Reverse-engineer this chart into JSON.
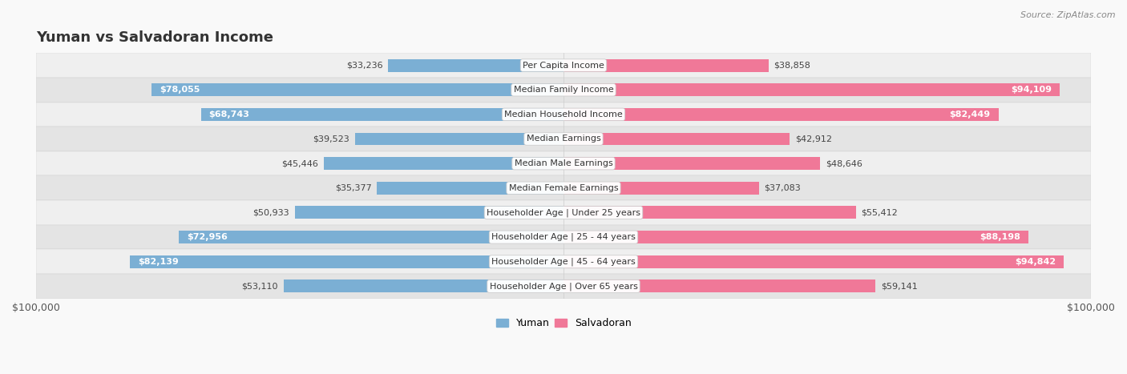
{
  "title": "Yuman vs Salvadoran Income",
  "source": "Source: ZipAtlas.com",
  "categories": [
    "Per Capita Income",
    "Median Family Income",
    "Median Household Income",
    "Median Earnings",
    "Median Male Earnings",
    "Median Female Earnings",
    "Householder Age | Under 25 years",
    "Householder Age | 25 - 44 years",
    "Householder Age | 45 - 64 years",
    "Householder Age | Over 65 years"
  ],
  "yuman_values": [
    33236,
    78055,
    68743,
    39523,
    45446,
    35377,
    50933,
    72956,
    82139,
    53110
  ],
  "salvadoran_values": [
    38858,
    94109,
    82449,
    42912,
    48646,
    37083,
    55412,
    88198,
    94842,
    59141
  ],
  "yuman_labels": [
    "$33,236",
    "$78,055",
    "$68,743",
    "$39,523",
    "$45,446",
    "$35,377",
    "$50,933",
    "$72,956",
    "$82,139",
    "$53,110"
  ],
  "salvadoran_labels": [
    "$38,858",
    "$94,109",
    "$82,449",
    "$42,912",
    "$48,646",
    "$37,083",
    "$55,412",
    "$88,198",
    "$94,842",
    "$59,141"
  ],
  "yuman_color": "#7bafd4",
  "salvadoran_color": "#f07898",
  "yuman_label_inside": [
    false,
    true,
    true,
    false,
    false,
    false,
    false,
    true,
    true,
    false
  ],
  "salvadoran_label_inside": [
    false,
    true,
    true,
    false,
    false,
    false,
    false,
    true,
    true,
    false
  ],
  "max_value": 100000,
  "bar_height": 0.52,
  "row_colors": [
    "#f0f0f0",
    "#e8e8e8"
  ],
  "legend_yuman": "Yuman",
  "legend_salvadoran": "Salvadoran",
  "title_fontsize": 13,
  "label_fontsize": 8.5,
  "value_fontsize": 8,
  "cat_fontsize": 8
}
